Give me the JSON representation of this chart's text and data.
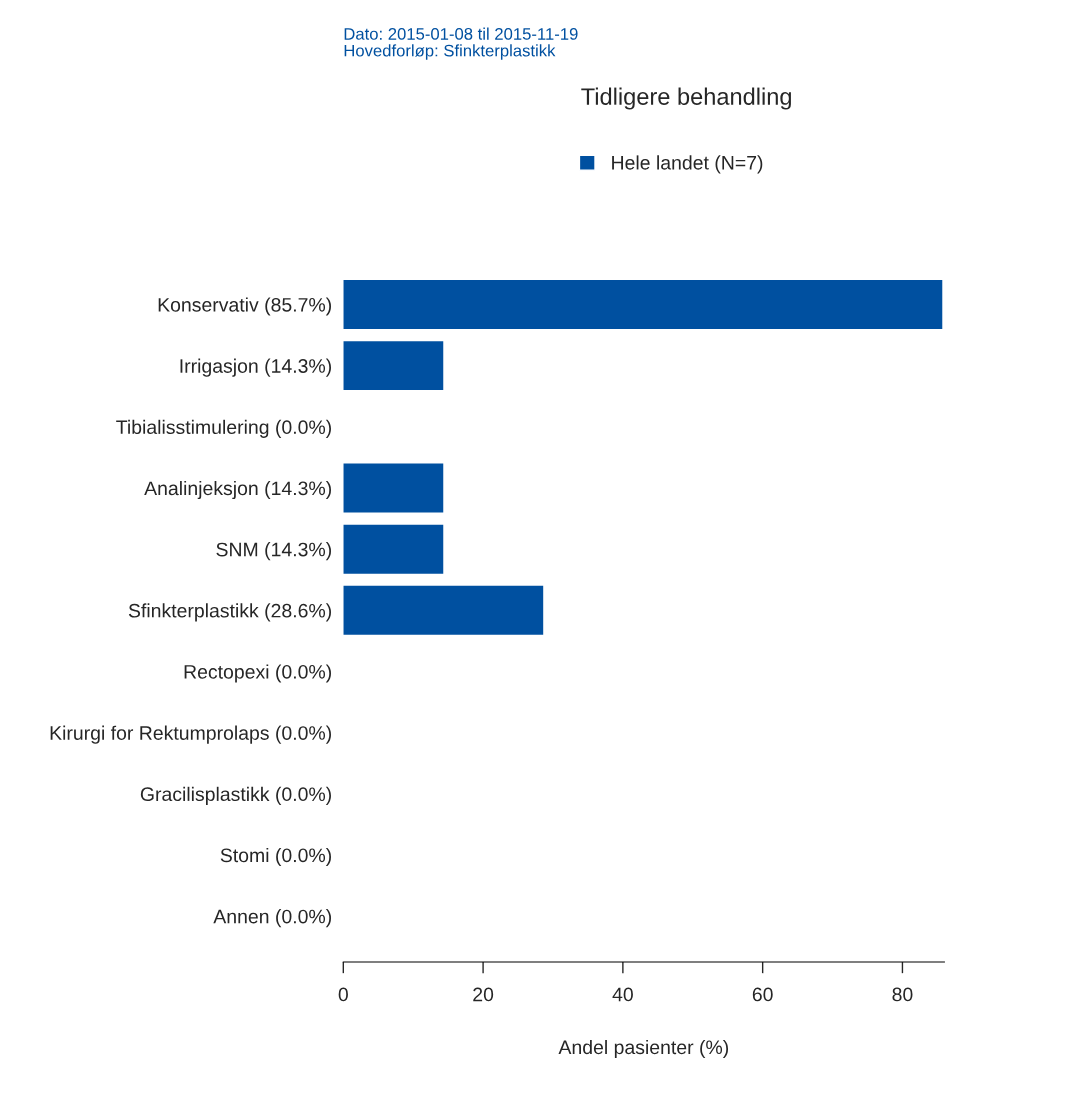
{
  "chart_data": {
    "type": "bar",
    "orientation": "horizontal",
    "title": "Tidligere behandling",
    "subtitle": "Dato: 2015-01-08 til 2015-11-19\nHovedforløp: Sfinkterplastikk",
    "xlabel": "Andel pasienter (%)",
    "categories": [
      "Konservativ (85.7%)",
      "Irrigasjon (14.3%)",
      "Tibialisstimulering (0.0%)",
      "Analinjeksjon (14.3%)",
      "SNM (14.3%)",
      "Sfinkterplastikk (28.6%)",
      "Rectopexi (0.0%)",
      "Kirurgi for Rektumprolaps (0.0%)",
      "Gracilisplastikk (0.0%)",
      "Stomi (0.0%)",
      "Annen (0.0%)"
    ],
    "series": [
      {
        "name": "Hele landet (N=7)",
        "color": "#0050a0",
        "values": [
          85.7,
          14.3,
          0.0,
          14.3,
          14.3,
          28.6,
          0.0,
          0.0,
          0.0,
          0.0,
          0.0
        ]
      }
    ],
    "xlim": [
      0,
      86
    ],
    "xticks": [
      0,
      20,
      40,
      60,
      80
    ],
    "grid": false,
    "legend": "top"
  }
}
